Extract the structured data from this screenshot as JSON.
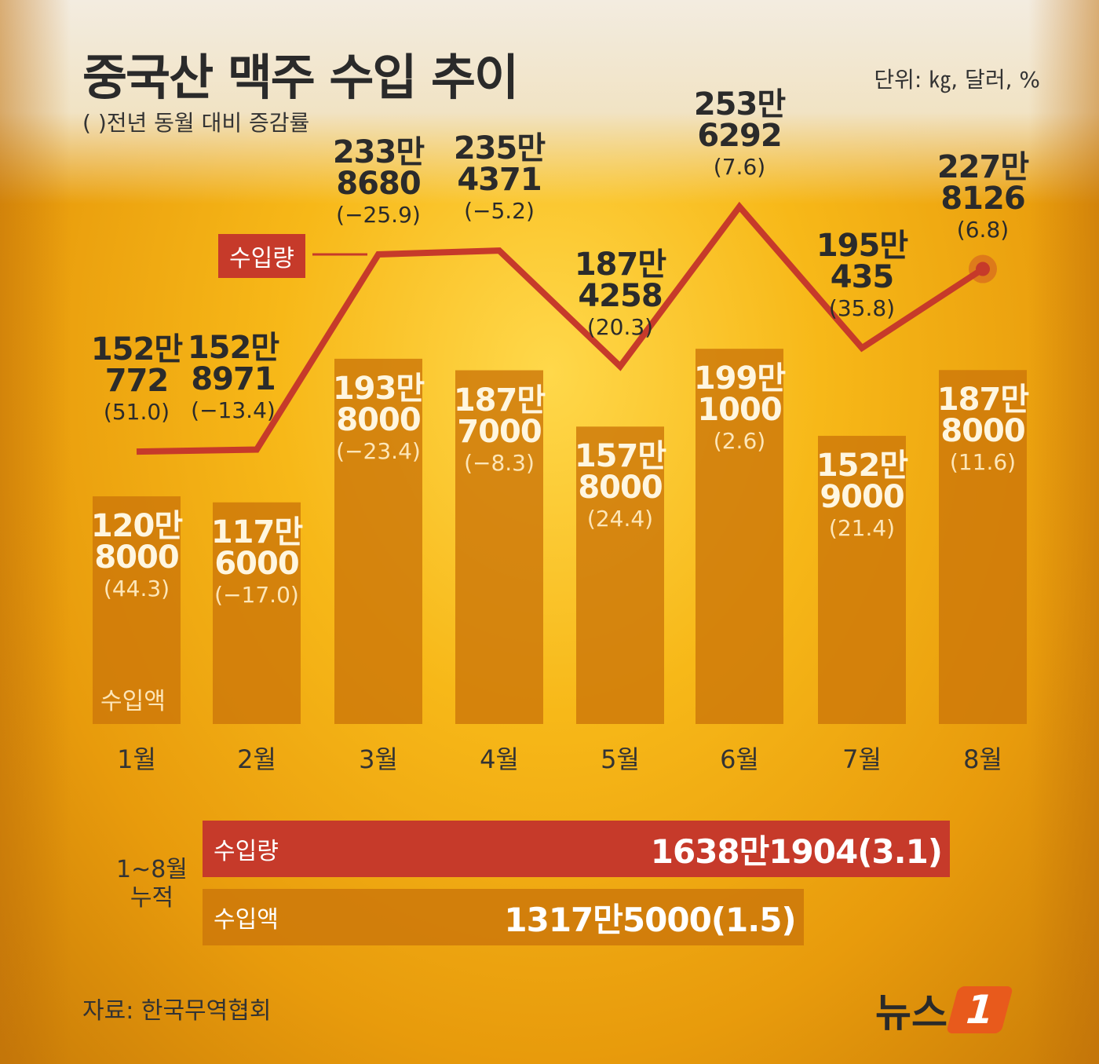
{
  "header": {
    "title": "중국산 맥주 수입 추이",
    "subtitle": "( )전년 동월 대비 증감률",
    "unit": "단위: ㎏, 달러, %"
  },
  "chart_data": {
    "type": "bar+line",
    "categories": [
      "1월",
      "2월",
      "3월",
      "4월",
      "5월",
      "6월",
      "7월",
      "8월"
    ],
    "series": [
      {
        "name": "수입량",
        "type": "line",
        "unit": "kg",
        "values": [
          1520772,
          1528971,
          2338680,
          2354371,
          1874258,
          2536292,
          1950435,
          2278126
        ],
        "labels_main": [
          "152만",
          "152만",
          "233만",
          "235만",
          "187만",
          "253만",
          "195만",
          "227만"
        ],
        "labels_rest": [
          "772",
          "8971",
          "8680",
          "4371",
          "4258",
          "6292",
          "435",
          "8126"
        ],
        "change_pct": [
          "(51.0)",
          "(−13.4)",
          "(−25.9)",
          "(−5.2)",
          "(20.3)",
          "(7.6)",
          "(35.8)",
          "(6.8)"
        ],
        "color": "#c63a2a"
      },
      {
        "name": "수입액",
        "type": "bar",
        "unit": "달러",
        "values": [
          1208000,
          1176000,
          1938000,
          1877000,
          1578000,
          1991000,
          1529000,
          1878000
        ],
        "labels_main": [
          "120만",
          "117만",
          "193만",
          "187만",
          "157만",
          "199만",
          "152만",
          "187만"
        ],
        "labels_rest": [
          "8000",
          "6000",
          "8000",
          "7000",
          "8000",
          "1000",
          "9000",
          "8000"
        ],
        "change_pct": [
          "(44.3)",
          "(−17.0)",
          "(−23.4)",
          "(−8.3)",
          "(24.4)",
          "(2.6)",
          "(21.4)",
          "(11.6)"
        ],
        "color": "#d98a14"
      }
    ]
  },
  "cumulative": {
    "label_line1": "1~8월",
    "label_line2": "누적",
    "volume": {
      "name": "수입량",
      "value": "1638만1904(3.1)",
      "amount": 16381904,
      "color": "#c63a2a"
    },
    "amount": {
      "name": "수입액",
      "value": "1317만5000(1.5)",
      "amount": 13175000,
      "color": "#d98a14"
    }
  },
  "source": "자료: 한국무역협회",
  "logo": {
    "text": "뉴스",
    "mark": "1"
  }
}
